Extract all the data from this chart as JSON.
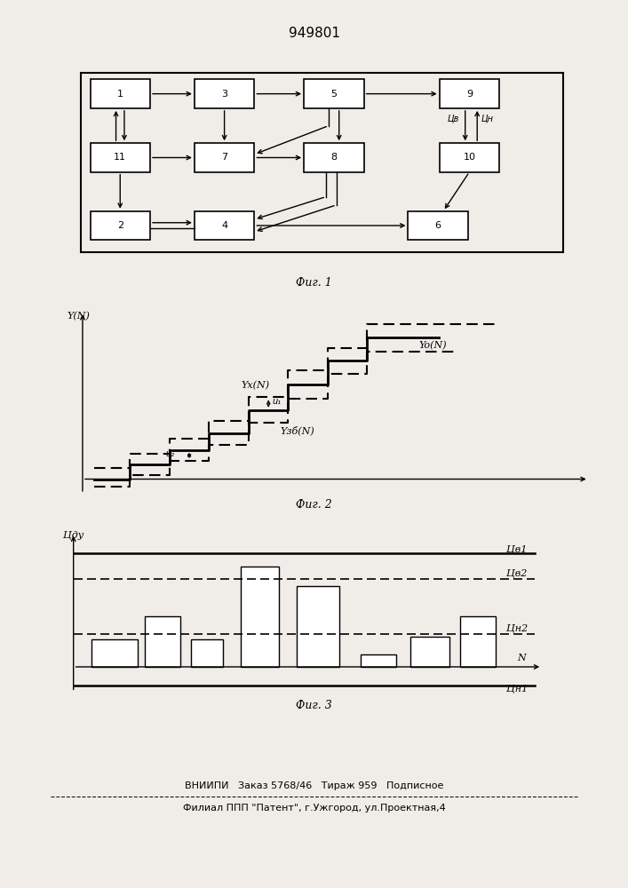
{
  "title": "949801",
  "fig1_caption": "Фиг. 1",
  "fig2_caption": "Фиг. 2",
  "fig3_caption": "Фиг. 3",
  "footer_line1": "ВНИИПИ   Заказ 5768/46   Тираж 959   Подписное",
  "footer_line2": "Филиал ППП \"Патент\", г.Ужгород, ул.Проектная,4",
  "bg_color": "#f0ede8",
  "uv_label": "Цв",
  "un_label": "Цн"
}
